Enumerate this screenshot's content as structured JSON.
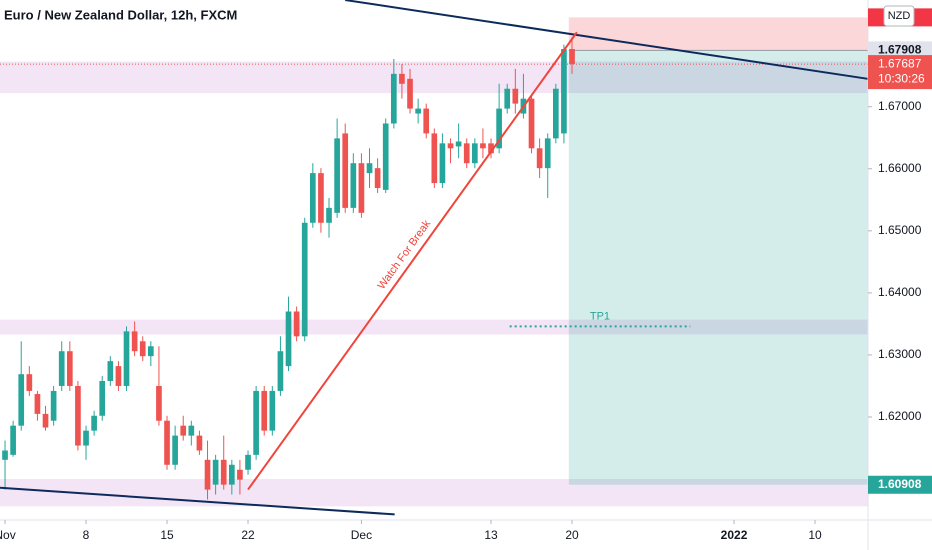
{
  "chart_data": {
    "type": "candlestick",
    "title": "Euro / New Zealand Dollar, 12h, FXCM",
    "currency": "NZD",
    "up_color": "#26a69a",
    "down_color": "#ef5350",
    "open": [
      1.6131,
      1.6139,
      1.6186,
      1.6269,
      1.6237,
      1.6205,
      1.6194,
      1.625,
      1.6306,
      1.625,
      1.6154,
      1.6178,
      1.6202,
      1.6258,
      1.6282,
      1.625,
      1.6338,
      1.6322,
      1.6298,
      1.625,
      1.6194,
      1.6123,
      1.6186,
      1.617,
      1.617,
      1.6131,
      1.6091,
      1.6131,
      1.6091,
      1.6115,
      1.6115,
      1.6139,
      1.6242,
      1.6178,
      1.6242,
      1.6282,
      1.637,
      1.633,
      1.6513,
      1.6593,
      1.6513,
      1.6529,
      1.6657,
      1.6537,
      1.6609,
      1.6593,
      1.6601,
      1.6566,
      1.6673,
      1.6753,
      1.6745,
      1.6689,
      1.6697,
      1.6657,
      1.6577,
      1.6641,
      1.6636,
      1.6641,
      1.6609,
      1.6641,
      1.6641,
      1.6633,
      1.6697,
      1.6729,
      1.6689,
      1.6713,
      1.6633,
      1.6601,
      1.6649,
      1.6657,
      1.6793
    ],
    "high": [
      1.6162,
      1.6194,
      1.6322,
      1.6282,
      1.6242,
      1.6218,
      1.625,
      1.6322,
      1.6322,
      1.6258,
      1.6186,
      1.621,
      1.6266,
      1.6298,
      1.629,
      1.6346,
      1.6354,
      1.633,
      1.6322,
      1.6314,
      1.6202,
      1.6186,
      1.6202,
      1.6194,
      1.6178,
      1.6162,
      1.6139,
      1.617,
      1.6131,
      1.6131,
      1.6146,
      1.625,
      1.625,
      1.625,
      1.633,
      1.6394,
      1.6378,
      1.6521,
      1.6609,
      1.6601,
      1.6553,
      1.6681,
      1.6673,
      1.6625,
      1.6625,
      1.6633,
      1.6617,
      1.6681,
      1.6777,
      1.6769,
      1.6761,
      1.6713,
      1.6705,
      1.6665,
      1.6657,
      1.6649,
      1.6673,
      1.6649,
      1.6649,
      1.6665,
      1.6649,
      1.6737,
      1.6737,
      1.6761,
      1.6753,
      1.6721,
      1.6649,
      1.6657,
      1.6737,
      1.68,
      1.6812
    ],
    "low": [
      1.6083,
      1.6136,
      1.6178,
      1.6234,
      1.6194,
      1.6178,
      1.6186,
      1.6242,
      1.6242,
      1.6146,
      1.6131,
      1.617,
      1.6194,
      1.625,
      1.6242,
      1.6242,
      1.6298,
      1.629,
      1.6282,
      1.6186,
      1.6115,
      1.6115,
      1.6162,
      1.6154,
      1.6139,
      1.6067,
      1.6075,
      1.6083,
      1.6075,
      1.6075,
      1.6107,
      1.6131,
      1.617,
      1.617,
      1.6234,
      1.6274,
      1.6322,
      1.6322,
      1.6505,
      1.6497,
      1.6489,
      1.6521,
      1.6529,
      1.6529,
      1.6521,
      1.6569,
      1.6561,
      1.6561,
      1.6665,
      1.6713,
      1.6689,
      1.6673,
      1.6649,
      1.6569,
      1.6569,
      1.6609,
      1.6617,
      1.6601,
      1.6601,
      1.6617,
      1.6617,
      1.6625,
      1.6689,
      1.6689,
      1.6681,
      1.6625,
      1.6585,
      1.6553,
      1.6641,
      1.6641,
      1.6753
    ],
    "close": [
      1.6146,
      1.6186,
      1.6269,
      1.6242,
      1.6205,
      1.6183,
      1.6242,
      1.6306,
      1.625,
      1.6154,
      1.6178,
      1.6202,
      1.6258,
      1.629,
      1.625,
      1.6338,
      1.6306,
      1.6298,
      1.6314,
      1.6194,
      1.6123,
      1.617,
      1.617,
      1.6186,
      1.6146,
      1.6083,
      1.6131,
      1.6091,
      1.6123,
      1.6099,
      1.6139,
      1.6242,
      1.6178,
      1.6242,
      1.6306,
      1.637,
      1.633,
      1.6513,
      1.6593,
      1.6513,
      1.6537,
      1.6649,
      1.6537,
      1.6609,
      1.6529,
      1.6609,
      1.6569,
      1.6673,
      1.6753,
      1.6737,
      1.6697,
      1.6697,
      1.6657,
      1.6577,
      1.6641,
      1.6633,
      1.6644,
      1.6609,
      1.6641,
      1.6633,
      1.6625,
      1.6697,
      1.6729,
      1.6705,
      1.6713,
      1.6633,
      1.6601,
      1.6649,
      1.6729,
      1.6793,
      1.67687
    ],
    "countdown": "10:30:26",
    "xlim": [
      -0.62,
      106.54
    ],
    "xticks": [
      {
        "value": 0,
        "label": "Nov"
      },
      {
        "value": 10,
        "label": "8"
      },
      {
        "value": 20,
        "label": "15"
      },
      {
        "value": 30,
        "label": "22"
      },
      {
        "value": 44,
        "label": "Dec"
      },
      {
        "value": 60,
        "label": "13"
      },
      {
        "value": 70,
        "label": "20"
      },
      {
        "value": 90,
        "label": "2022"
      },
      {
        "value": 100,
        "label": "10"
      }
    ],
    "ylim": [
      1.6034,
      1.6872
    ],
    "yticks": [
      {
        "value": 1.62,
        "label": "1.62000"
      },
      {
        "value": 1.63,
        "label": "1.63000"
      },
      {
        "value": 1.64,
        "label": "1.64000"
      },
      {
        "value": 1.65,
        "label": "1.65000"
      },
      {
        "value": 1.66,
        "label": "1.66000"
      },
      {
        "value": 1.67,
        "label": "1.67000"
      }
    ],
    "zones": [
      {
        "low": 1.6722,
        "high": 1.6773
      },
      {
        "low": 1.6333,
        "high": 1.6357
      },
      {
        "low": 1.6056,
        "high": 1.61
      }
    ],
    "zone_color": "#f1dff4",
    "position": {
      "entry": 1.67908,
      "stop": 1.6844,
      "target": 1.60908,
      "x": [
        69.6,
        106.5
      ]
    },
    "trendlines": [
      {
        "x": [
          42,
          106.5
        ],
        "y": [
          1.6872,
          1.6745
        ],
        "color": "#0d2a5c"
      },
      {
        "x": [
          -0.62,
          48.1
        ],
        "y": [
          1.6086,
          1.6043
        ],
        "color": "#0d2a5c"
      },
      {
        "x": [
          30,
          70.6
        ],
        "y": [
          1.6083,
          1.682
        ],
        "color": "#f0453a",
        "label": "Watch For Break"
      }
    ],
    "tp": {
      "price": 1.6346,
      "x": [
        62.3,
        84.6
      ],
      "label": "TP1",
      "color": "#26a69a"
    }
  }
}
